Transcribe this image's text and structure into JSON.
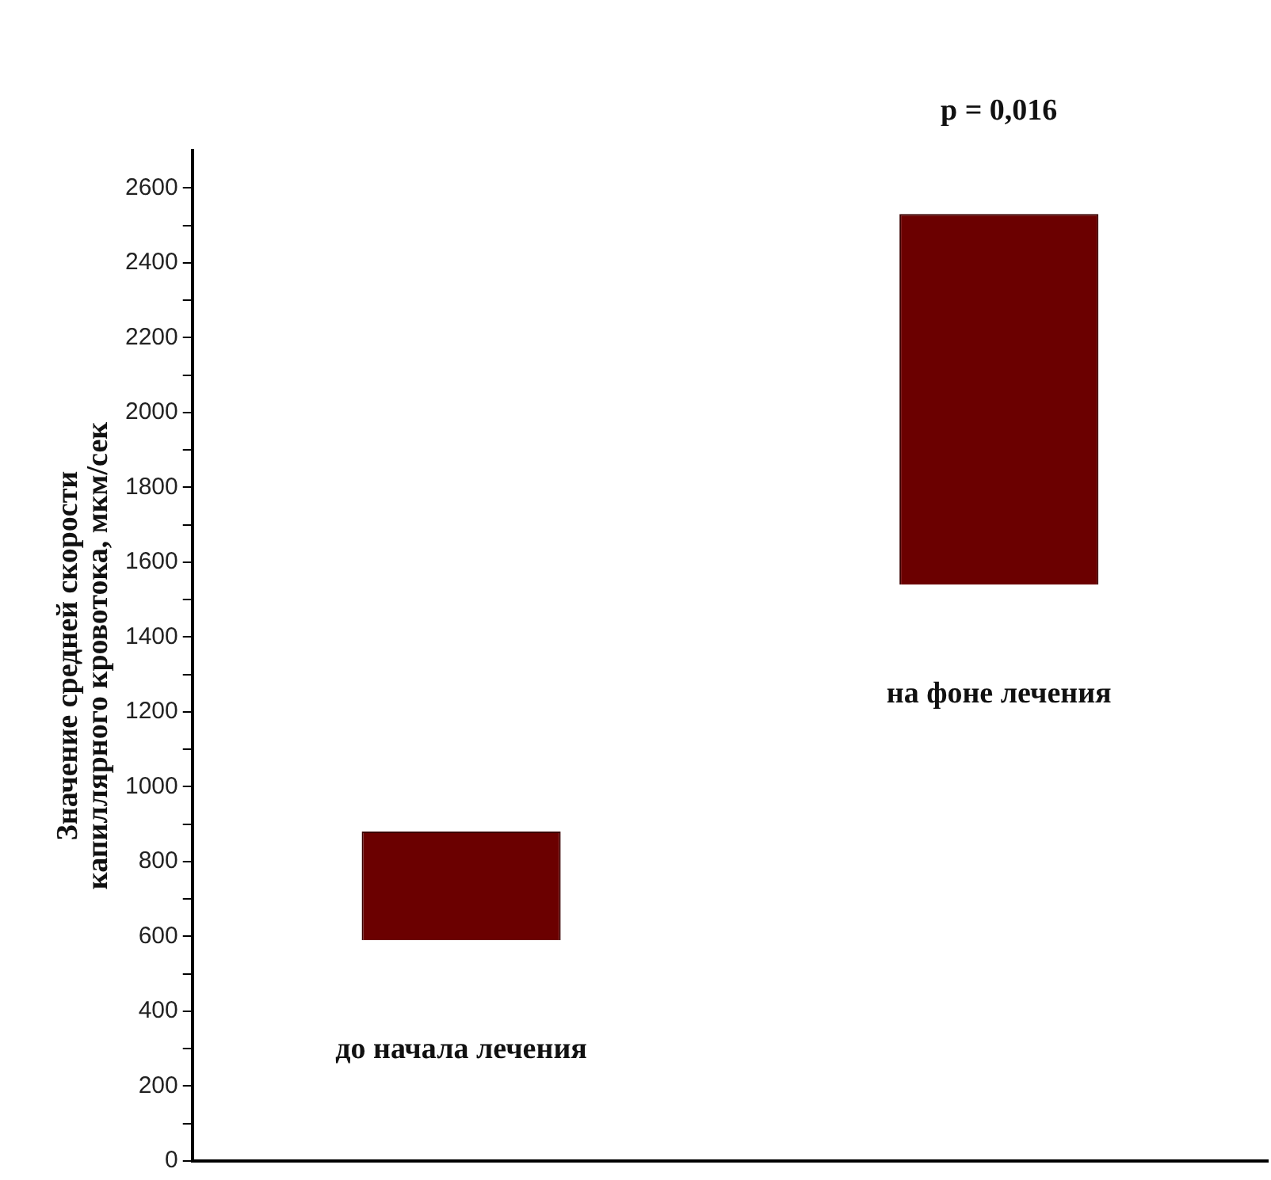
{
  "chart_data": {
    "type": "bar",
    "ylabel": "Значение средней скорости\nкапиллярного кровотока, мкм/сек",
    "categories": [
      "до начала лечения",
      "на фоне лечения"
    ],
    "base": [
      590,
      1540
    ],
    "values": [
      290,
      990
    ],
    "color": "#6b0000",
    "ylim": [
      0,
      2700
    ],
    "yticks": [
      0,
      {
        "value": 100,
        "label": null
      },
      200,
      {
        "value": 300,
        "label": null
      },
      400,
      {
        "value": 500,
        "label": null
      },
      600,
      {
        "value": 700,
        "label": null
      },
      800,
      {
        "value": 900,
        "label": null
      },
      1000,
      {
        "value": 1100,
        "label": null
      },
      1200,
      {
        "value": 1300,
        "label": null
      },
      1400,
      {
        "value": 1500,
        "label": null
      },
      1600,
      {
        "value": 1700,
        "label": null
      },
      1800,
      {
        "value": 1900,
        "label": null
      },
      2000,
      {
        "value": 2100,
        "label": null
      },
      2200,
      {
        "value": 2300,
        "label": null
      },
      2400,
      {
        "value": 2500,
        "label": null
      },
      2600
    ],
    "annotations": [
      "p = 0,016"
    ],
    "grid": false,
    "legend": false
  }
}
